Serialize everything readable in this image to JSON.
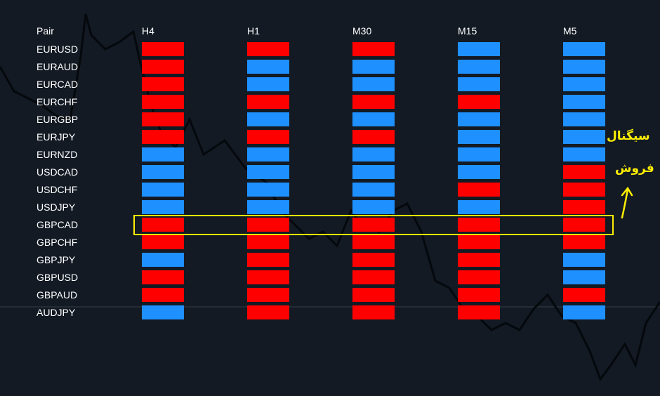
{
  "header": {
    "pair_label": "Pair",
    "timeframes": [
      "H4",
      "H1",
      "M30",
      "M15",
      "M5"
    ]
  },
  "colors": {
    "sell": "#ff0000",
    "buy": "#1e90ff",
    "background": "#131a24",
    "highlight": "#ffee00"
  },
  "pairs": [
    {
      "name": "EURUSD",
      "signals": [
        "sell",
        "sell",
        "sell",
        "buy",
        "buy"
      ]
    },
    {
      "name": "EURAUD",
      "signals": [
        "sell",
        "buy",
        "buy",
        "buy",
        "buy"
      ]
    },
    {
      "name": "EURCAD",
      "signals": [
        "sell",
        "buy",
        "buy",
        "buy",
        "buy"
      ]
    },
    {
      "name": "EURCHF",
      "signals": [
        "sell",
        "sell",
        "sell",
        "sell",
        "buy"
      ]
    },
    {
      "name": "EURGBP",
      "signals": [
        "sell",
        "buy",
        "buy",
        "buy",
        "buy"
      ]
    },
    {
      "name": "EURJPY",
      "signals": [
        "sell",
        "sell",
        "sell",
        "buy",
        "buy"
      ]
    },
    {
      "name": "EURNZD",
      "signals": [
        "buy",
        "buy",
        "buy",
        "buy",
        "buy"
      ]
    },
    {
      "name": "USDCAD",
      "signals": [
        "buy",
        "buy",
        "buy",
        "buy",
        "sell"
      ]
    },
    {
      "name": "USDCHF",
      "signals": [
        "buy",
        "buy",
        "buy",
        "sell",
        "sell"
      ]
    },
    {
      "name": "USDJPY",
      "signals": [
        "buy",
        "buy",
        "buy",
        "buy",
        "sell"
      ]
    },
    {
      "name": "GBPCAD",
      "signals": [
        "sell",
        "sell",
        "sell",
        "sell",
        "sell"
      ]
    },
    {
      "name": "GBPCHF",
      "signals": [
        "sell",
        "sell",
        "sell",
        "sell",
        "sell"
      ]
    },
    {
      "name": "GBPJPY",
      "signals": [
        "buy",
        "sell",
        "sell",
        "sell",
        "buy"
      ]
    },
    {
      "name": "GBPUSD",
      "signals": [
        "sell",
        "sell",
        "sell",
        "sell",
        "buy"
      ]
    },
    {
      "name": "GBPAUD",
      "signals": [
        "sell",
        "sell",
        "sell",
        "sell",
        "sell"
      ]
    },
    {
      "name": "AUDJPY",
      "signals": [
        "buy",
        "sell",
        "sell",
        "sell",
        "buy"
      ]
    }
  ],
  "annotation": {
    "line1": "سیگنال",
    "line2": "فروش",
    "highlighted_pair": "GBPCAD"
  }
}
